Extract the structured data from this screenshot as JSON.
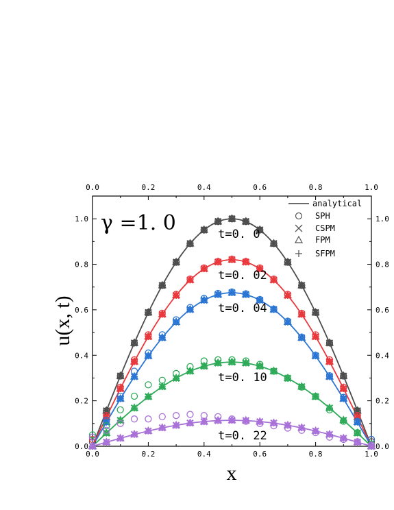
{
  "chart_data": {
    "type": "line",
    "annotation": "γ =1. 0",
    "xlabel": "x",
    "ylabel": "u(x, t)",
    "xlim": [
      0,
      1
    ],
    "ylim": [
      0,
      1.1
    ],
    "x_ticks": [
      "0.0",
      "0.2",
      "0.4",
      "0.6",
      "0.8",
      "1.0"
    ],
    "y_ticks": [
      "0.0",
      "0.2",
      "0.4",
      "0.6",
      "0.8",
      "1.0"
    ],
    "mirror_axes": true,
    "grid": false,
    "legend_position": "top-right",
    "legend": [
      {
        "label": "analytical",
        "marker": "line"
      },
      {
        "label": "SPH",
        "marker": "circle"
      },
      {
        "label": "CSPM",
        "marker": "x"
      },
      {
        "label": "FPM",
        "marker": "triangle"
      },
      {
        "label": "SFPM",
        "marker": "plus"
      }
    ],
    "x": [
      0,
      0.05,
      0.1,
      0.15,
      0.2,
      0.25,
      0.3,
      0.35,
      0.4,
      0.45,
      0.5,
      0.55,
      0.6,
      0.65,
      0.7,
      0.75,
      0.8,
      0.85,
      0.9,
      0.95,
      1.0
    ],
    "series": [
      {
        "name": "t=0. 0",
        "color": "#4d4d4d",
        "amplitude": 1.0,
        "analytical": [
          0,
          0.156,
          0.309,
          0.454,
          0.588,
          0.707,
          0.809,
          0.891,
          0.951,
          0.988,
          1.0,
          0.988,
          0.951,
          0.891,
          0.809,
          0.707,
          0.588,
          0.454,
          0.309,
          0.156,
          0
        ],
        "SPH": [
          0.02,
          0.156,
          0.309,
          0.454,
          0.588,
          0.707,
          0.809,
          0.891,
          0.951,
          0.988,
          1.0,
          0.988,
          0.951,
          0.891,
          0.809,
          0.707,
          0.588,
          0.454,
          0.309,
          0.156,
          0.02
        ]
      },
      {
        "name": "t=0. 02",
        "color": "#e8383d",
        "amplitude": 0.82,
        "analytical": [
          0,
          0.128,
          0.253,
          0.372,
          0.482,
          0.58,
          0.663,
          0.731,
          0.78,
          0.81,
          0.82,
          0.81,
          0.78,
          0.731,
          0.663,
          0.58,
          0.482,
          0.372,
          0.253,
          0.128,
          0
        ],
        "SPH": [
          0.03,
          0.135,
          0.26,
          0.38,
          0.49,
          0.585,
          0.668,
          0.735,
          0.784,
          0.812,
          0.822,
          0.812,
          0.784,
          0.735,
          0.668,
          0.585,
          0.49,
          0.38,
          0.26,
          0.135,
          0.03
        ]
      },
      {
        "name": "t=0. 04",
        "color": "#2a75d3",
        "amplitude": 0.675,
        "analytical": [
          0,
          0.106,
          0.209,
          0.306,
          0.397,
          0.477,
          0.546,
          0.601,
          0.642,
          0.667,
          0.675,
          0.667,
          0.642,
          0.601,
          0.546,
          0.477,
          0.397,
          0.306,
          0.209,
          0.106,
          0
        ],
        "SPH": [
          0.04,
          0.115,
          0.22,
          0.33,
          0.41,
          0.49,
          0.556,
          0.61,
          0.65,
          0.672,
          0.678,
          0.67,
          0.645,
          0.603,
          0.55,
          0.48,
          0.4,
          0.31,
          0.215,
          0.11,
          0.03
        ]
      },
      {
        "name": "t=0. 10",
        "color": "#2eaa58",
        "amplitude": 0.37,
        "analytical": [
          0,
          0.058,
          0.114,
          0.168,
          0.218,
          0.262,
          0.299,
          0.33,
          0.352,
          0.366,
          0.37,
          0.366,
          0.352,
          0.33,
          0.299,
          0.262,
          0.218,
          0.168,
          0.114,
          0.058,
          0
        ],
        "SPH": [
          0.05,
          0.09,
          0.16,
          0.22,
          0.27,
          0.29,
          0.32,
          0.35,
          0.375,
          0.38,
          0.38,
          0.375,
          0.36,
          0.33,
          0.3,
          0.26,
          0.22,
          0.16,
          0.11,
          0.06,
          0.01
        ]
      },
      {
        "name": "t=0. 22",
        "color": "#a871d8",
        "amplitude": 0.114,
        "analytical": [
          0,
          0.018,
          0.035,
          0.052,
          0.067,
          0.081,
          0.092,
          0.102,
          0.108,
          0.113,
          0.114,
          0.113,
          0.108,
          0.102,
          0.092,
          0.081,
          0.067,
          0.052,
          0.035,
          0.018,
          0
        ],
        "SPH": [
          0.04,
          0.07,
          0.1,
          0.12,
          0.12,
          0.13,
          0.135,
          0.14,
          0.135,
          0.13,
          0.12,
          0.11,
          0.1,
          0.09,
          0.08,
          0.07,
          0.06,
          0.04,
          0.03,
          0.02,
          0.005
        ]
      }
    ]
  }
}
